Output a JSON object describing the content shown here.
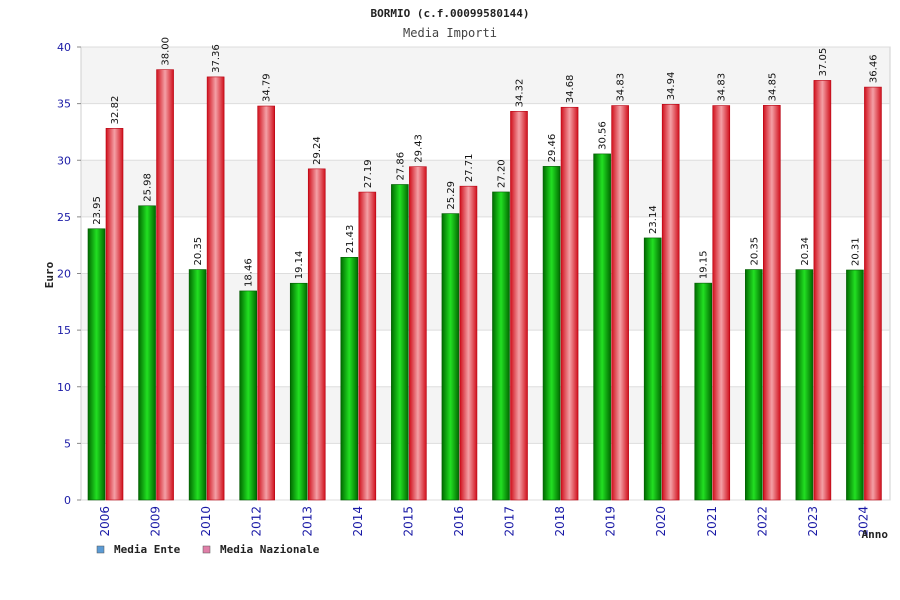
{
  "chart_data": {
    "type": "bar",
    "title": "BORMIO (c.f.00099580144)",
    "subtitle": "Media Importi",
    "ylabel": "Euro",
    "xlabel": "Anno",
    "ylim": [
      0,
      40
    ],
    "yticks": [
      0,
      5,
      10,
      15,
      20,
      25,
      30,
      35,
      40
    ],
    "categories": [
      "2006",
      "2009",
      "2010",
      "2012",
      "2013",
      "2014",
      "2015",
      "2016",
      "2017",
      "2018",
      "2019",
      "2020",
      "2021",
      "2022",
      "2023",
      "2024"
    ],
    "series": [
      {
        "name": "Media Ente",
        "color": "#00b000",
        "legend_color": "#5b9bd5",
        "values": [
          23.95,
          25.98,
          20.35,
          18.46,
          19.14,
          21.43,
          27.86,
          25.29,
          27.2,
          29.46,
          30.56,
          23.14,
          19.15,
          20.35,
          20.34,
          20.31
        ],
        "labels": [
          "23.95",
          "25.98",
          "20.35",
          "18.46",
          "19.14",
          "21.43",
          "27.86",
          "25.29",
          "27.20",
          "29.46",
          "30.56",
          "23.14",
          "19.15",
          "20.35",
          "20.34",
          "20.31"
        ]
      },
      {
        "name": "Media Nazionale",
        "color": "#e8101e",
        "legend_color": "#e07fa8",
        "values": [
          32.82,
          38.0,
          37.36,
          34.79,
          29.24,
          27.19,
          29.43,
          27.71,
          34.32,
          34.68,
          34.83,
          34.94,
          34.83,
          34.85,
          37.05,
          36.46
        ],
        "labels": [
          "32.82",
          "38.00",
          "37.36",
          "34.79",
          "29.24",
          "27.19",
          "29.43",
          "27.71",
          "34.32",
          "34.68",
          "34.83",
          "34.94",
          "34.83",
          "34.85",
          "37.05",
          "36.46"
        ]
      }
    ],
    "grid": true,
    "legend_position": "bottom-left"
  }
}
